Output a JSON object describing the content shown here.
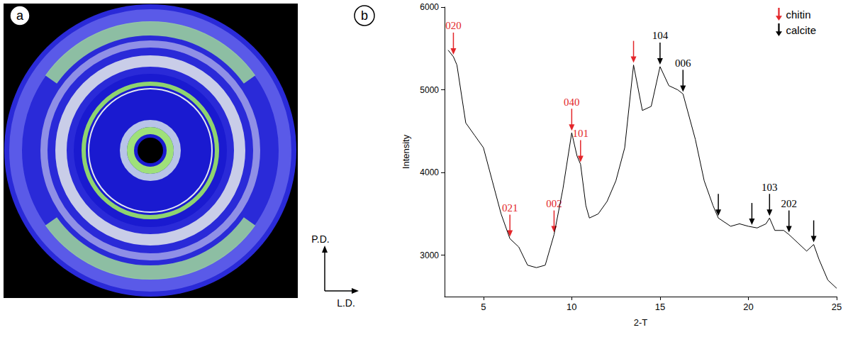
{
  "image_panel": {
    "letter": "a",
    "axis_labels": {
      "up": "P.D.",
      "right": "L.D."
    }
  },
  "chart_data": {
    "type": "line",
    "panel": "b",
    "x_label": "2-T",
    "y_label": "Intensity",
    "x": [
      3.0,
      3.3,
      3.5,
      4.0,
      4.5,
      5.0,
      5.5,
      6.0,
      6.5,
      7.0,
      7.5,
      8.0,
      8.5,
      9.0,
      9.5,
      10.0,
      10.3,
      10.5,
      10.8,
      11.0,
      11.5,
      12.0,
      12.5,
      13.0,
      13.5,
      14.0,
      14.5,
      15.0,
      15.5,
      16.0,
      16.3,
      17.0,
      17.5,
      18.0,
      18.3,
      19.0,
      19.5,
      20.0,
      20.5,
      21.0,
      21.2,
      21.5,
      22.0,
      22.3,
      22.8,
      23.3,
      23.7,
      24.0,
      24.5,
      25.0
    ],
    "values": [
      5480,
      5400,
      5300,
      4600,
      4450,
      4300,
      3900,
      3500,
      3200,
      3100,
      2880,
      2850,
      2880,
      3250,
      3800,
      4480,
      4200,
      4100,
      3600,
      3450,
      3500,
      3650,
      3900,
      4300,
      5300,
      4750,
      4800,
      5280,
      5050,
      5000,
      4950,
      4400,
      3900,
      3600,
      3450,
      3350,
      3380,
      3350,
      3330,
      3380,
      3450,
      3300,
      3300,
      3250,
      3150,
      3050,
      3130,
      2950,
      2700,
      2600
    ],
    "color": "#000000",
    "xlim": [
      2.8,
      25
    ],
    "xticks": [
      5,
      10,
      15,
      20,
      25
    ],
    "ylim": [
      2500,
      6000
    ],
    "yticks": [
      3000,
      4000,
      5000,
      6000
    ],
    "grid": false,
    "legend": "top-right",
    "annotations": [
      {
        "name": "chitin",
        "color": "#e3262a",
        "marks": [
          {
            "x": 3.3,
            "y": 5400,
            "label": "020"
          },
          {
            "x": 6.5,
            "y": 3200,
            "label": "021"
          },
          {
            "x": 9.0,
            "y": 3250,
            "label": "002"
          },
          {
            "x": 10.0,
            "y": 4480,
            "label": "040"
          },
          {
            "x": 10.5,
            "y": 4100,
            "label": "101"
          },
          {
            "x": 13.5,
            "y": 5300
          }
        ]
      },
      {
        "name": "calcite",
        "color": "#000000",
        "marks": [
          {
            "x": 15.0,
            "y": 5280,
            "label": "104"
          },
          {
            "x": 16.3,
            "y": 4950,
            "label": "006"
          },
          {
            "x": 18.3,
            "y": 3450
          },
          {
            "x": 20.2,
            "y": 3340
          },
          {
            "x": 21.2,
            "y": 3450,
            "label": "103"
          },
          {
            "x": 22.3,
            "y": 3250,
            "label": "202"
          },
          {
            "x": 23.7,
            "y": 3130
          }
        ]
      }
    ]
  }
}
